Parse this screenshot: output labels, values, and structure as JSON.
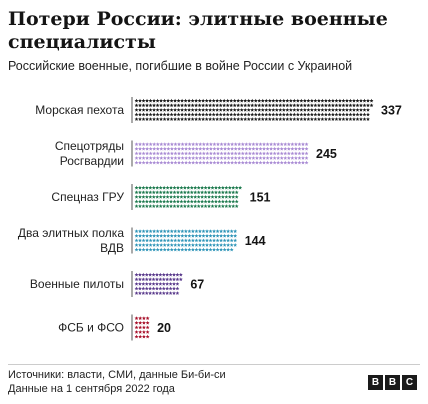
{
  "header": {
    "title": "Потери России: элитные военные специалисты",
    "subtitle": "Российские военные, погибшие в войне России с Украиной"
  },
  "footer": {
    "source": "Источники: власти, СМИ, данные Би-би-си",
    "date_note": "Данные на 1 сентября 2022 года",
    "logo_letters": [
      "B",
      "B",
      "C"
    ]
  },
  "chart_data": {
    "type": "bar",
    "orientation": "horizontal",
    "mark": "star-pictogram",
    "categories": [
      [
        "Морская пехота"
      ],
      [
        "Спецотряды",
        "Росгвардии"
      ],
      [
        "Спецназ ГРУ"
      ],
      [
        "Два элитных полка",
        "ВДВ"
      ],
      [
        "Военные пилоты"
      ],
      [
        "ФСБ и ФСО"
      ]
    ],
    "values": [
      337,
      245,
      151,
      144,
      67,
      20
    ],
    "colors": [
      "#1a1a1a",
      "#a98bd4",
      "#1d7a4e",
      "#2f95b8",
      "#5a3a8c",
      "#a8102a"
    ],
    "grid": false,
    "legend": "none"
  }
}
